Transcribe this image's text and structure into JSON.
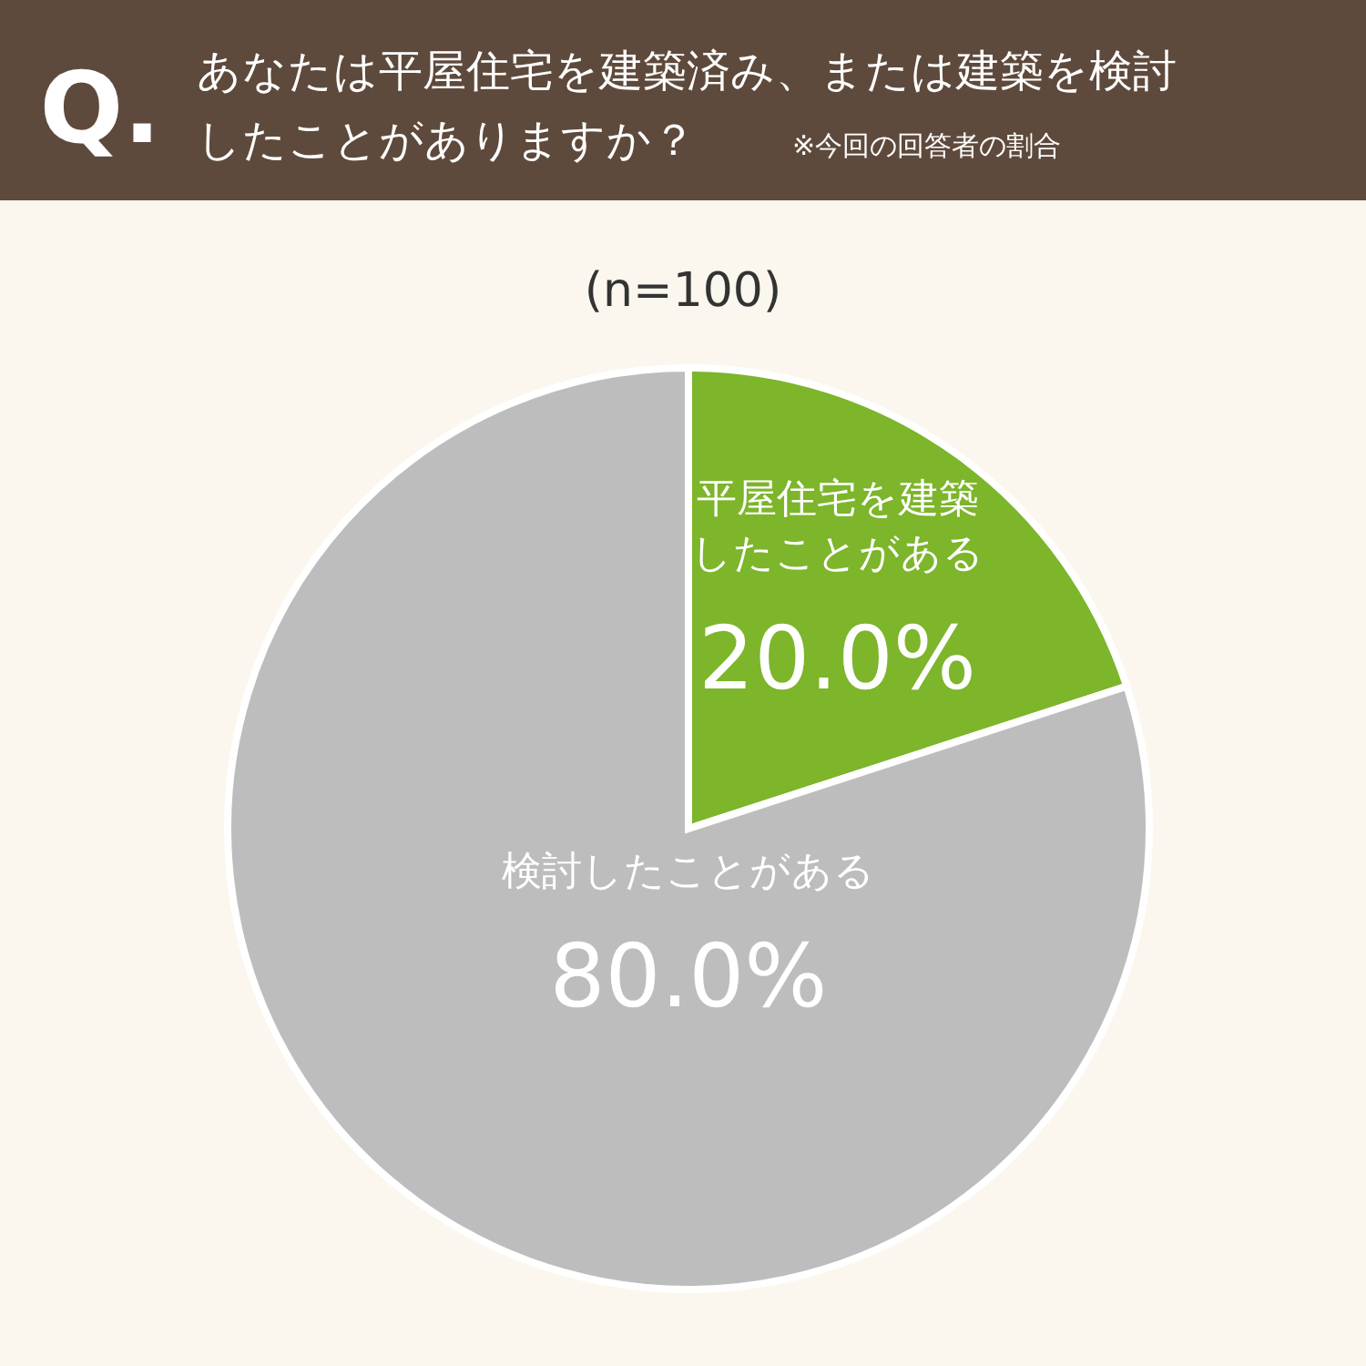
{
  "chart_data": {
    "type": "pie",
    "title": "あなたは平屋住宅を建築済み、または建築を検討したことがありますか？",
    "subtitle": "※今回の回答者の割合",
    "annotations": [
      "Q.",
      "(n=100)"
    ],
    "categories": [
      "平屋住宅を建築したことがある",
      "検討したことがある"
    ],
    "values": [
      20.0,
      80.0
    ],
    "value_labels": [
      "20.0%",
      "80.0%"
    ],
    "colors": [
      "#7db52b",
      "#bdbdbd"
    ]
  }
}
